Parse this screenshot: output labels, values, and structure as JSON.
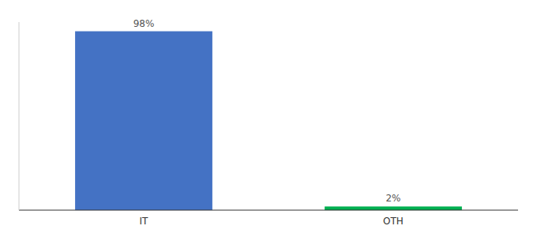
{
  "chart_data": {
    "type": "bar",
    "categories": [
      "IT",
      "OTH"
    ],
    "values": [
      98,
      2
    ],
    "value_labels": [
      "98%",
      "2%"
    ],
    "colors": [
      "#4472C4",
      "#00B050"
    ],
    "ylim": [
      0,
      103
    ],
    "data_labels": true,
    "tick_labels": "x",
    "grid": false
  }
}
